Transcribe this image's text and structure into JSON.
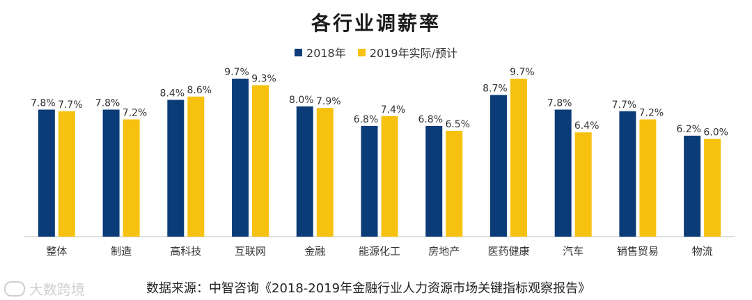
{
  "chart_data": {
    "type": "bar",
    "title": "各行业调薪率",
    "categories": [
      "整体",
      "制造",
      "高科技",
      "互联网",
      "金融",
      "能源化工",
      "房地产",
      "医药健康",
      "汽车",
      "销售贸易",
      "物流"
    ],
    "series": [
      {
        "name": "2018年",
        "color": "#0b3c78",
        "values": [
          7.8,
          7.8,
          8.4,
          9.7,
          8.0,
          6.8,
          6.8,
          8.7,
          7.8,
          7.7,
          6.2
        ],
        "labels": [
          "7.8%",
          "7.8%",
          "8.4%",
          "9.7%",
          "8.0%",
          "6.8%",
          "6.8%",
          "8.7%",
          "7.8%",
          "7.7%",
          "6.2%"
        ]
      },
      {
        "name": "2019年实际/预计",
        "color": "#f7c10f",
        "values": [
          7.7,
          7.2,
          8.6,
          9.3,
          7.9,
          7.4,
          6.5,
          9.7,
          6.4,
          7.2,
          6.0
        ],
        "labels": [
          "7.7%",
          "7.2%",
          "8.6%",
          "9.3%",
          "7.9%",
          "7.4%",
          "6.5%",
          "9.7%",
          "6.4%",
          "7.2%",
          "6.0%"
        ]
      }
    ],
    "legend_position": "top-center",
    "grid": false
  },
  "source_text": "数据来源：中智咨询《2018-2019年金融行业人力资源市场关键指标观察报告》",
  "watermark_text": "大数跨境"
}
